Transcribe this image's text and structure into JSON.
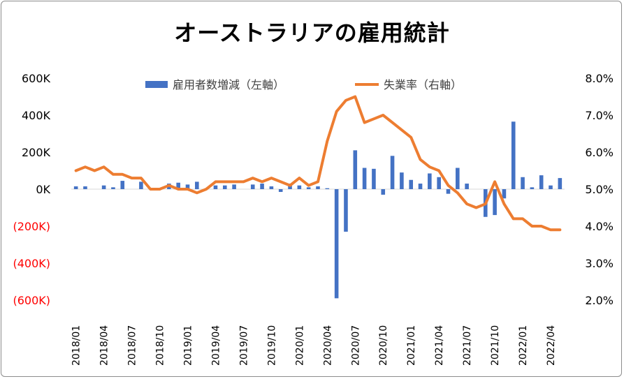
{
  "chart_data": {
    "type": "bar+line",
    "title": "オーストラリアの雇用統計",
    "series": [
      {
        "name": "雇用者数増減（左軸）",
        "type": "bar",
        "axis": "left",
        "color": "#4472c4",
        "values": [
          15000,
          15000,
          0,
          20000,
          10000,
          45000,
          0,
          40000,
          0,
          0,
          30000,
          35000,
          25000,
          40000,
          0,
          20000,
          20000,
          25000,
          0,
          25000,
          30000,
          15000,
          -15000,
          30000,
          20000,
          10000,
          15000,
          5000,
          -590000,
          -230000,
          210000,
          115000,
          110000,
          -30000,
          180000,
          90000,
          50000,
          30000,
          85000,
          65000,
          -25000,
          115000,
          30000,
          0,
          -150000,
          -140000,
          -50000,
          365000,
          65000,
          10000,
          75000,
          20000,
          60000
        ]
      },
      {
        "name": "失業率（右軸）",
        "type": "line",
        "axis": "right",
        "color": "#ed7d31",
        "values": [
          5.5,
          5.6,
          5.5,
          5.6,
          5.4,
          5.4,
          5.3,
          5.3,
          5.0,
          5.0,
          5.1,
          5.0,
          5.0,
          4.9,
          5.0,
          5.2,
          5.2,
          5.2,
          5.2,
          5.3,
          5.2,
          5.3,
          5.2,
          5.1,
          5.3,
          5.1,
          5.2,
          6.3,
          7.1,
          7.4,
          7.5,
          6.8,
          6.9,
          7.0,
          6.8,
          6.6,
          6.4,
          5.8,
          5.6,
          5.5,
          5.1,
          4.9,
          4.6,
          4.5,
          4.6,
          5.2,
          4.6,
          4.2,
          4.2,
          4.0,
          4.0,
          3.9,
          3.9
        ]
      }
    ],
    "x_months_start": "2018/01",
    "x_tick_labels": [
      "2018/01",
      "2018/04",
      "2018/07",
      "2018/10",
      "2019/01",
      "2019/04",
      "2019/07",
      "2019/10",
      "2020/01",
      "2020/04",
      "2020/07",
      "2020/10",
      "2021/01",
      "2021/04",
      "2021/07",
      "2021/10",
      "2022/01",
      "2022/04"
    ],
    "left_axis": {
      "ylim": [
        -600000,
        600000
      ],
      "tick_labels": [
        "600K",
        "400K",
        "200K",
        "0K",
        "(200K)",
        "(400K)",
        "(600K)"
      ],
      "negative_color": "#ff0000"
    },
    "right_axis": {
      "ylim": [
        2.0,
        8.0
      ],
      "tick_labels": [
        "8.0%",
        "7.0%",
        "6.0%",
        "5.0%",
        "4.0%",
        "3.0%",
        "2.0%"
      ]
    },
    "grid": false,
    "legend_position": "top"
  }
}
